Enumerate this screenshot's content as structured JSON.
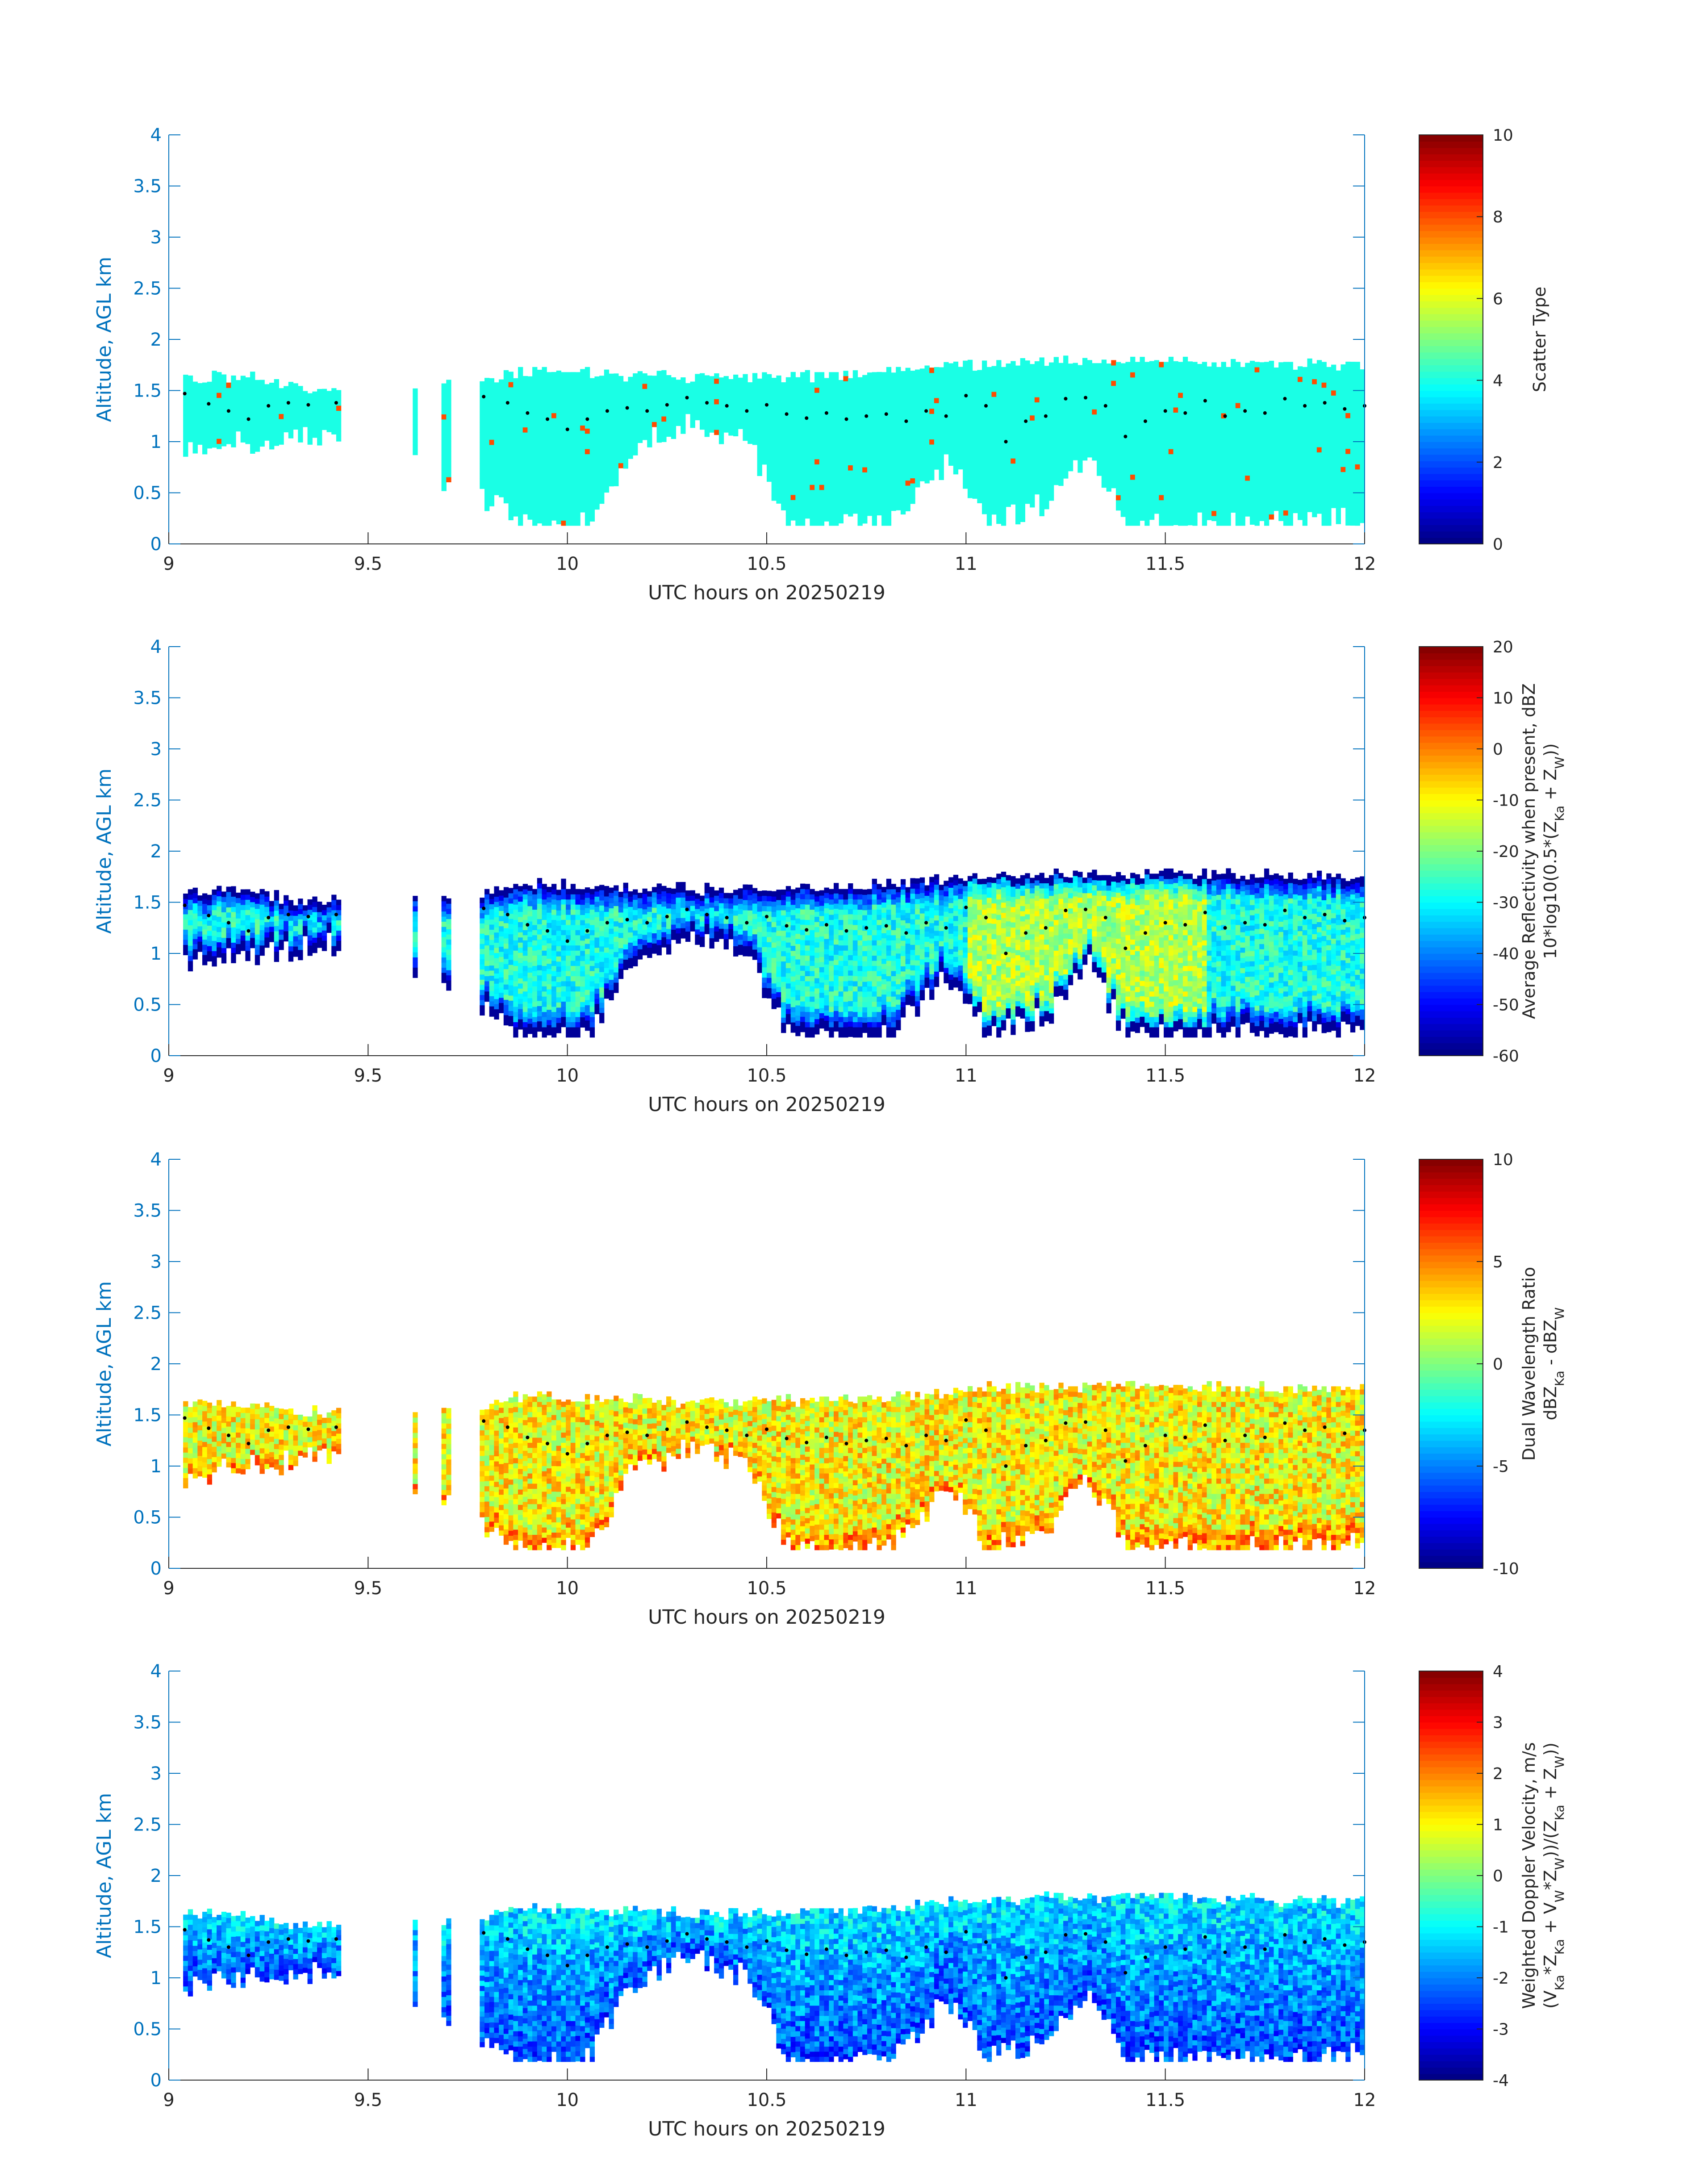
{
  "chart_data": [
    {
      "type": "heatmap",
      "xlabel": "UTC hours on 20250219",
      "ylabel": "Altitude, AGL km",
      "xlim": [
        9,
        12
      ],
      "ylim": [
        0,
        4
      ],
      "xticks": [
        "9",
        "9.5",
        "10",
        "10.5",
        "11",
        "11.5",
        "12"
      ],
      "yticks": [
        "0",
        "0.5",
        "1",
        "1.5",
        "2",
        "2.5",
        "3",
        "3.5",
        "4"
      ],
      "colorbar": {
        "range": [
          0,
          10
        ],
        "ticks": [
          "0",
          "2",
          "4",
          "6",
          "8",
          "10"
        ],
        "label": [
          "Scatter Type"
        ]
      },
      "colormap": "jet",
      "field": "scatter",
      "cloud_base_markers": "black dots along ~1.1–1.45 km"
    },
    {
      "type": "heatmap",
      "xlabel": "UTC hours on 20250219",
      "ylabel": "Altitude, AGL km",
      "xlim": [
        9,
        12
      ],
      "ylim": [
        0,
        4
      ],
      "xticks": [
        "9",
        "9.5",
        "10",
        "10.5",
        "11",
        "11.5",
        "12"
      ],
      "yticks": [
        "0",
        "0.5",
        "1",
        "1.5",
        "2",
        "2.5",
        "3",
        "3.5",
        "4"
      ],
      "colorbar": {
        "range": [
          -60,
          20
        ],
        "ticks": [
          "-60",
          "-50",
          "-40",
          "-30",
          "-20",
          "-10",
          "0",
          "10",
          "20"
        ],
        "label": [
          "Average Reflectivity when present, dBZ",
          "10*log10(0.5*(Z_Ka + Z_W))"
        ]
      },
      "colormap": "jet",
      "field": "reflectivity"
    },
    {
      "type": "heatmap",
      "xlabel": "UTC hours on 20250219",
      "ylabel": "Altitude, AGL km",
      "xlim": [
        9,
        12
      ],
      "ylim": [
        0,
        4
      ],
      "xticks": [
        "9",
        "9.5",
        "10",
        "10.5",
        "11",
        "11.5",
        "12"
      ],
      "yticks": [
        "0",
        "0.5",
        "1",
        "1.5",
        "2",
        "2.5",
        "3",
        "3.5",
        "4"
      ],
      "colorbar": {
        "range": [
          -10,
          10
        ],
        "ticks": [
          "-10",
          "-5",
          "0",
          "5",
          "10"
        ],
        "label": [
          "Dual Wavelength Ratio",
          "dBZ_Ka - dBZ_W"
        ]
      },
      "colormap": "jet",
      "field": "dwr"
    },
    {
      "type": "heatmap",
      "xlabel": "UTC hours on 20250219",
      "ylabel": "Altitude, AGL km",
      "xlim": [
        9,
        12
      ],
      "ylim": [
        0,
        4
      ],
      "xticks": [
        "9",
        "9.5",
        "10",
        "10.5",
        "11",
        "11.5",
        "12"
      ],
      "yticks": [
        "0",
        "0.5",
        "1",
        "1.5",
        "2",
        "2.5",
        "3",
        "3.5",
        "4"
      ],
      "colorbar": {
        "range": [
          -4,
          4
        ],
        "ticks": [
          "-4",
          "-3",
          "-2",
          "-1",
          "0",
          "1",
          "2",
          "3",
          "4"
        ],
        "label": [
          "Weighted Doppler Velocity, m/s",
          "(V_Ka*Z_Ka + V_W*Z_W))/(Z_Ka + Z_W))"
        ]
      },
      "colormap": "jet",
      "field": "velocity"
    }
  ],
  "cloud_top_km": [
    [
      9.03,
      1.6
    ],
    [
      9.2,
      1.6
    ],
    [
      9.3,
      1.5
    ],
    [
      9.43,
      1.5
    ],
    [
      9.78,
      1.55
    ],
    [
      9.85,
      1.65
    ],
    [
      10.0,
      1.65
    ],
    [
      10.2,
      1.62
    ],
    [
      10.4,
      1.6
    ],
    [
      10.6,
      1.62
    ],
    [
      10.8,
      1.65
    ],
    [
      11.0,
      1.73
    ],
    [
      11.2,
      1.75
    ],
    [
      11.4,
      1.77
    ],
    [
      11.6,
      1.75
    ],
    [
      11.8,
      1.73
    ],
    [
      12.0,
      1.73
    ]
  ],
  "cloud_base_km": [
    [
      9.03,
      0.9
    ],
    [
      9.2,
      1.0
    ],
    [
      9.43,
      1.1
    ],
    [
      9.8,
      0.4
    ],
    [
      9.9,
      0.18
    ],
    [
      10.05,
      0.2
    ],
    [
      10.15,
      0.9
    ],
    [
      10.3,
      1.2
    ],
    [
      10.45,
      1.0
    ],
    [
      10.55,
      0.18
    ],
    [
      10.8,
      0.18
    ],
    [
      10.95,
      0.8
    ],
    [
      11.05,
      0.2
    ],
    [
      11.2,
      0.4
    ],
    [
      11.3,
      0.9
    ],
    [
      11.4,
      0.2
    ],
    [
      11.6,
      0.2
    ],
    [
      11.8,
      0.2
    ],
    [
      12.0,
      0.25
    ]
  ],
  "cloud_base_markers_km": [
    [
      9.04,
      1.47
    ],
    [
      9.1,
      1.37
    ],
    [
      9.15,
      1.3
    ],
    [
      9.2,
      1.22
    ],
    [
      9.25,
      1.35
    ],
    [
      9.3,
      1.38
    ],
    [
      9.35,
      1.36
    ],
    [
      9.42,
      1.38
    ],
    [
      9.79,
      1.44
    ],
    [
      9.85,
      1.38
    ],
    [
      9.9,
      1.28
    ],
    [
      9.95,
      1.22
    ],
    [
      10.0,
      1.12
    ],
    [
      10.05,
      1.22
    ],
    [
      10.1,
      1.3
    ],
    [
      10.15,
      1.33
    ],
    [
      10.2,
      1.3
    ],
    [
      10.25,
      1.36
    ],
    [
      10.3,
      1.43
    ],
    [
      10.35,
      1.38
    ],
    [
      10.4,
      1.35
    ],
    [
      10.45,
      1.3
    ],
    [
      10.5,
      1.36
    ],
    [
      10.55,
      1.27
    ],
    [
      10.6,
      1.23
    ],
    [
      10.65,
      1.28
    ],
    [
      10.7,
      1.22
    ],
    [
      10.75,
      1.25
    ],
    [
      10.8,
      1.27
    ],
    [
      10.85,
      1.2
    ],
    [
      10.9,
      1.3
    ],
    [
      10.95,
      1.25
    ],
    [
      11.0,
      1.45
    ],
    [
      11.05,
      1.35
    ],
    [
      11.1,
      1.0
    ],
    [
      11.15,
      1.2
    ],
    [
      11.2,
      1.25
    ],
    [
      11.25,
      1.42
    ],
    [
      11.3,
      1.43
    ],
    [
      11.35,
      1.35
    ],
    [
      11.4,
      1.05
    ],
    [
      11.45,
      1.2
    ],
    [
      11.5,
      1.3
    ],
    [
      11.55,
      1.28
    ],
    [
      11.6,
      1.4
    ],
    [
      11.65,
      1.25
    ],
    [
      11.7,
      1.3
    ],
    [
      11.75,
      1.28
    ],
    [
      11.8,
      1.42
    ],
    [
      11.85,
      1.35
    ],
    [
      11.9,
      1.38
    ],
    [
      11.95,
      1.32
    ],
    [
      12.0,
      1.35
    ]
  ]
}
